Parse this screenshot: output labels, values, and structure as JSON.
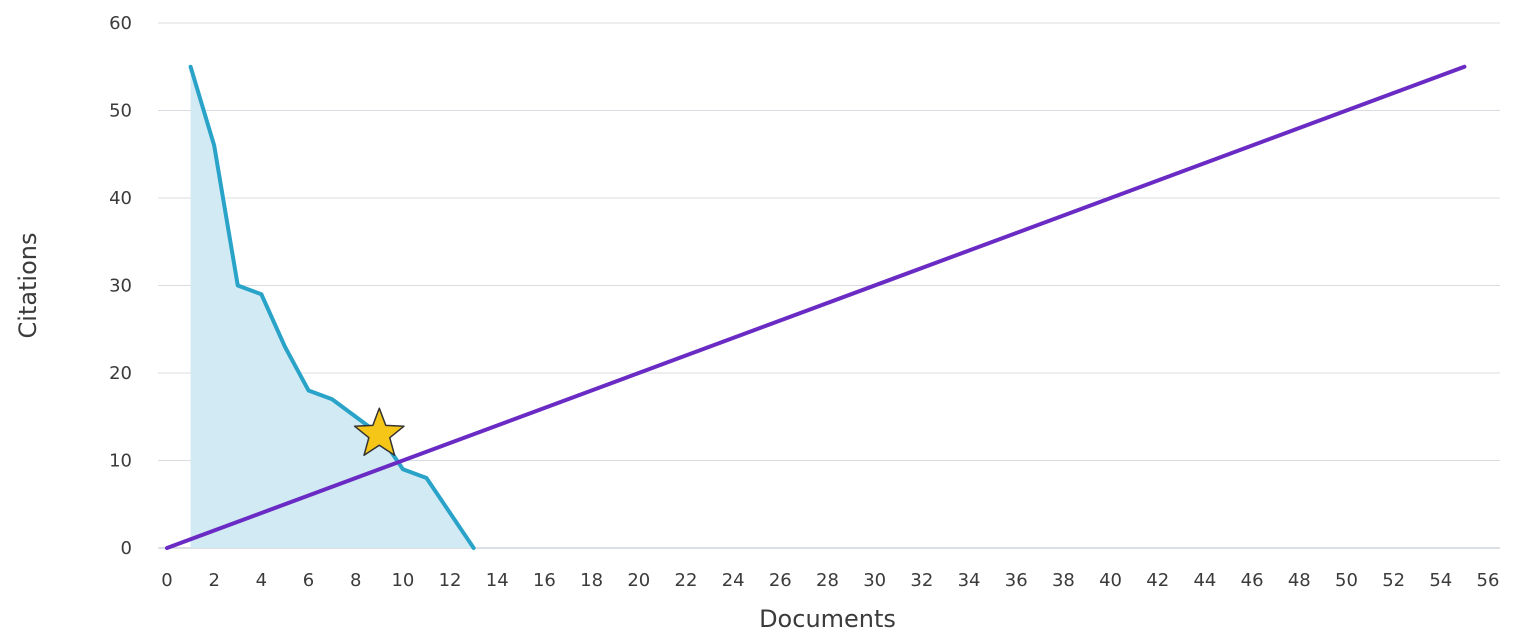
{
  "chart_data": {
    "type": "line",
    "xlabel": "Documents",
    "ylabel": "Citations",
    "xlim": [
      0,
      56
    ],
    "ylim": [
      0,
      60
    ],
    "x_ticks": [
      0,
      2,
      4,
      6,
      8,
      10,
      12,
      14,
      16,
      18,
      20,
      22,
      24,
      26,
      28,
      30,
      32,
      34,
      36,
      38,
      40,
      42,
      44,
      46,
      48,
      50,
      52,
      54,
      56
    ],
    "y_ticks": [
      0,
      10,
      20,
      30,
      40,
      50,
      60
    ],
    "grid": "horizontal",
    "series": [
      {
        "type": "area",
        "color": "#2aa3c9",
        "fill": "#d2eaf4",
        "points": [
          [
            1,
            55
          ],
          [
            2,
            46
          ],
          [
            3,
            30
          ],
          [
            4,
            29
          ],
          [
            5,
            23
          ],
          [
            6,
            18
          ],
          [
            7,
            17
          ],
          [
            8,
            15
          ],
          [
            9,
            13
          ],
          [
            10,
            9
          ],
          [
            11,
            8
          ],
          [
            12,
            4
          ],
          [
            13,
            0
          ]
        ]
      },
      {
        "type": "line",
        "color": "#6a2bc4",
        "points": [
          [
            0,
            0
          ],
          [
            55,
            55
          ]
        ]
      }
    ],
    "marker": {
      "shape": "star",
      "x": 9,
      "y": 13,
      "color": "#f5c518",
      "outline": "#333333"
    }
  }
}
